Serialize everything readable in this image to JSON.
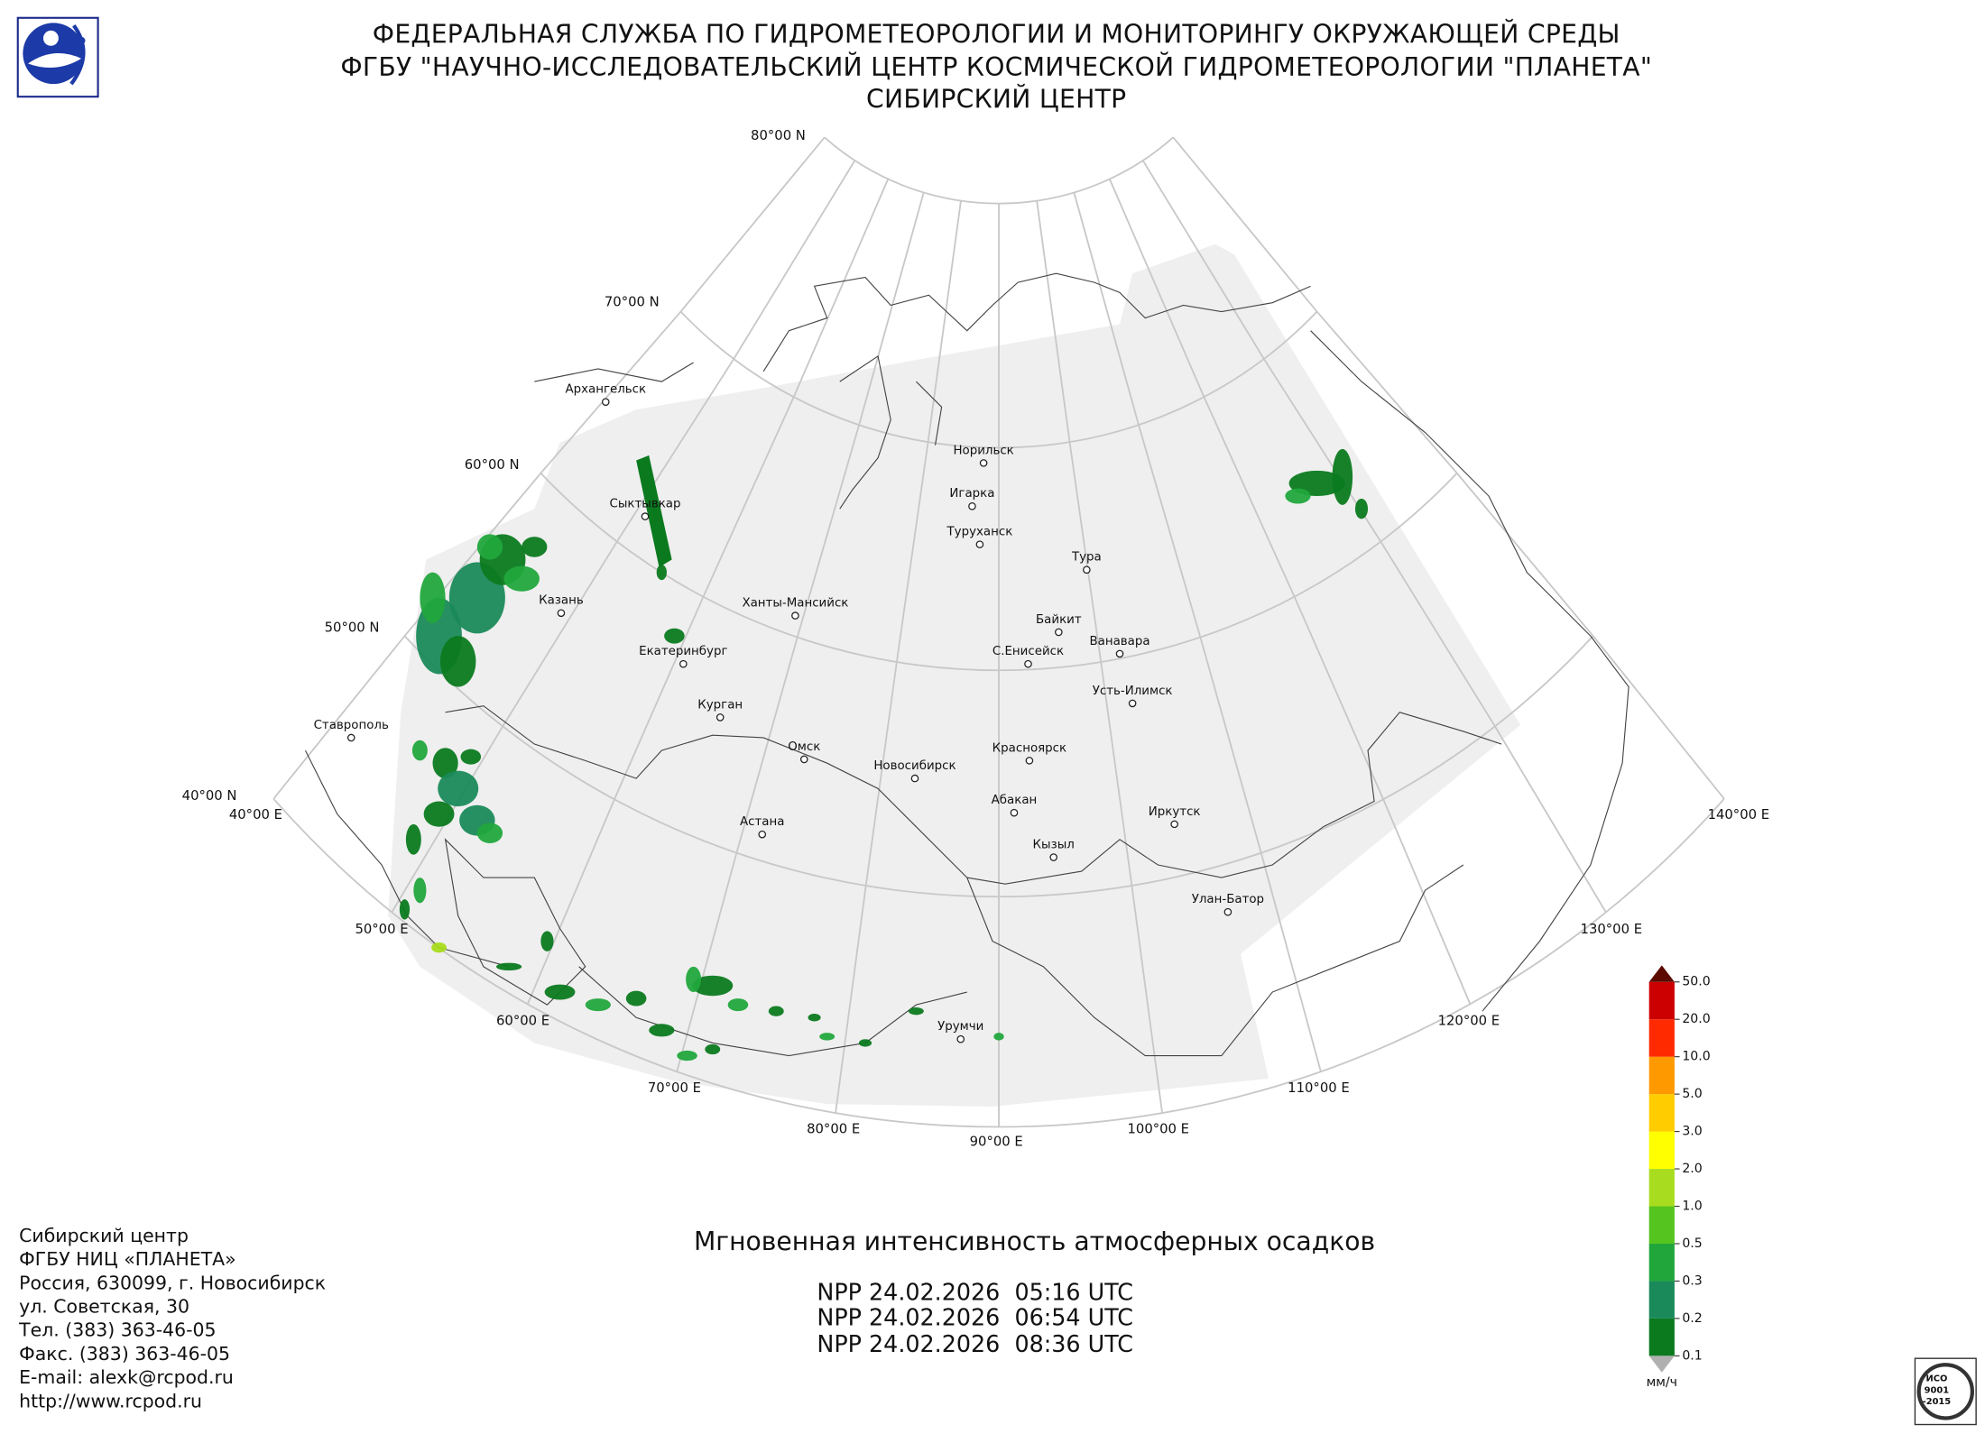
{
  "header": {
    "line1": "ФЕДЕРАЛЬНАЯ СЛУЖБА ПО ГИДРОМЕТЕОРОЛОГИИ И МОНИТОРИНГУ ОКРУЖАЮЩЕЙ СРЕДЫ",
    "line2": "ФГБУ \"НАУЧНО-ИССЛЕДОВАТЕЛЬСКИЙ ЦЕНТР КОСМИЧЕСКОЙ ГИДРОМЕТЕОРОЛОГИИ \"ПЛАНЕТА\"",
    "line3": "СИБИРСКИЙ ЦЕНТР"
  },
  "grid_labels": {
    "latitudes": [
      "80°00 N",
      "70°00 N",
      "60°00 N",
      "50°00 N",
      "40°00 N"
    ],
    "longitudes": [
      "40°00 E",
      "50°00 E",
      "60°00 E",
      "70°00 E",
      "80°00 E",
      "90°00 E",
      "100°00 E",
      "110°00 E",
      "120°00 E",
      "130°00 E",
      "140°00 E"
    ]
  },
  "cities": [
    {
      "name": "Архангельск"
    },
    {
      "name": "Сыктывкар"
    },
    {
      "name": "Казань"
    },
    {
      "name": "Екатеринбург"
    },
    {
      "name": "Ханты-Мансийск"
    },
    {
      "name": "Курган"
    },
    {
      "name": "Ставрополь"
    },
    {
      "name": "Омск"
    },
    {
      "name": "Астана"
    },
    {
      "name": "Новосибирск"
    },
    {
      "name": "Норильск"
    },
    {
      "name": "Игарка"
    },
    {
      "name": "Туруханск"
    },
    {
      "name": "Тура"
    },
    {
      "name": "Байкит"
    },
    {
      "name": "С.Енисейск"
    },
    {
      "name": "Ванавара"
    },
    {
      "name": "Усть-Илимск"
    },
    {
      "name": "Красноярск"
    },
    {
      "name": "Абакан"
    },
    {
      "name": "Иркутск"
    },
    {
      "name": "Кызыл"
    },
    {
      "name": "Улан-Батор"
    },
    {
      "name": "Урумчи"
    }
  ],
  "title": "Мгновенная интенсивность атмосферных осадков",
  "passes": [
    "NPP 24.02.2026  05:16 UTC",
    "NPP 24.02.2026  06:54 UTC",
    "NPP 24.02.2026  08:36 UTC"
  ],
  "colorbar": {
    "ticks": [
      0.1,
      0.2,
      0.3,
      0.5,
      {
        "value": 1,
        "label": "1.0"
      },
      {
        "value": 2,
        "label": "2.0"
      },
      {
        "value": 3,
        "label": "3.0"
      },
      {
        "value": 5,
        "label": "5.0"
      },
      {
        "value": 10,
        "label": "10.0"
      },
      {
        "value": 20,
        "label": "20.0"
      },
      {
        "value": 50,
        "label": "50.0"
      }
    ],
    "colors": [
      "#0b7a1f",
      "#1a8a5a",
      "#21a63c",
      "#55c41e",
      "#a8dc1e",
      "#ffff00",
      "#ffcc00",
      "#ff9900",
      "#ff2a00",
      "#cc0000"
    ],
    "over_color": "#5c0a00",
    "under_color": "#b0b0b0",
    "unit": "мм/ч"
  },
  "contacts": [
    "Сибирский центр",
    "ФГБУ НИЦ «ПЛАНЕТА»",
    "Россия, 630099, г. Новосибирск",
    "ул. Советская, 30",
    "Тел. (383) 363-46-05",
    "Факс. (383) 363-46-05",
    "E-mail: alexk@rcpod.ru",
    "http://www.rcpod.ru"
  ],
  "iso_logo": {
    "line1": "ИСО",
    "line2": "9001",
    "line3": "-2015"
  }
}
